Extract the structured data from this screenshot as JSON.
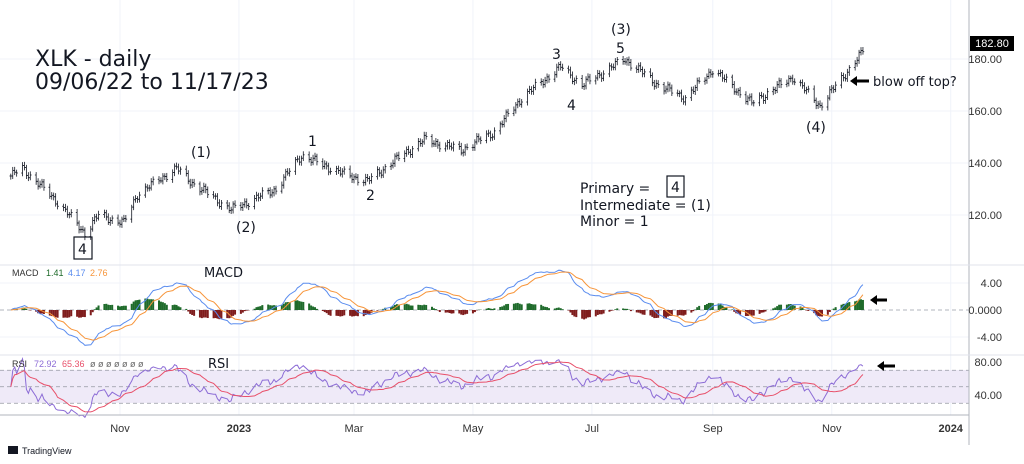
{
  "title": "XLK - daily",
  "subtitle": "09/06/22 to 11/17/23",
  "last_price": "182.80",
  "annotations": {
    "w3": "3",
    "w3i": "(3)",
    "w5": "5",
    "w4": "4",
    "m1": "1",
    "m2": "2",
    "i1": "(1)",
    "i2": "(2)",
    "p4": "4",
    "i4": "(4)",
    "blow": "blow off top?"
  },
  "legend_box": {
    "primary": "Primary =",
    "primary_val": "4",
    "intermediate": "Intermediate = (1)",
    "minor": "Minor = 1"
  },
  "macd": {
    "label": "MACD",
    "name": "MACD",
    "hist": "1.41",
    "macd": "4.17",
    "signal": "2.76",
    "ticks": [
      "4.00",
      "0.0000",
      "-4.00"
    ]
  },
  "rsi": {
    "label": "RSI",
    "name": "RSI",
    "value": "72.92",
    "ma": "65.36",
    "extra": "ø ø ø ø ø ø ø",
    "ticks": [
      "80.00",
      "40.00"
    ]
  },
  "price_ticks": [
    "180.00",
    "160.00",
    "140.00",
    "120.00"
  ],
  "time_ticks": [
    "Nov",
    "2023",
    "Mar",
    "May",
    "Jul",
    "Sep",
    "Nov",
    "2024"
  ],
  "brand": "TradingView",
  "colors": {
    "macd": "#5b8def",
    "signal": "#f7953a",
    "hist_up": "#1f6b2b",
    "hist_down": "#7f1d1d",
    "rsi": "#8c6cd6",
    "rsi_ma": "#e8506a",
    "band": "#efeaf8"
  },
  "chart_data": {
    "type": "ohlc",
    "symbol": "XLK",
    "interval": "daily",
    "ylim": [
      105,
      190
    ],
    "price_path": [
      [
        "2022-09-06",
        135
      ],
      [
        "2022-09-12",
        138
      ],
      [
        "2022-09-30",
        125
      ],
      [
        "2022-10-14",
        113
      ],
      [
        "2022-10-21",
        120
      ],
      [
        "2022-11-03",
        117
      ],
      [
        "2022-11-10",
        128
      ],
      [
        "2022-11-30",
        138
      ],
      [
        "2022-12-07",
        133
      ],
      [
        "2022-12-28",
        122
      ],
      [
        "2023-01-20",
        130
      ],
      [
        "2023-02-02",
        143
      ],
      [
        "2023-02-23",
        136
      ],
      [
        "2023-03-08",
        133
      ],
      [
        "2023-03-20",
        140
      ],
      [
        "2023-04-06",
        149
      ],
      [
        "2023-04-25",
        145
      ],
      [
        "2023-05-12",
        152
      ],
      [
        "2023-05-26",
        165
      ],
      [
        "2023-06-15",
        177
      ],
      [
        "2023-06-26",
        170
      ],
      [
        "2023-07-18",
        180
      ],
      [
        "2023-08-04",
        170
      ],
      [
        "2023-08-18",
        165
      ],
      [
        "2023-09-01",
        176
      ],
      [
        "2023-09-21",
        163
      ],
      [
        "2023-10-12",
        173
      ],
      [
        "2023-10-26",
        162
      ],
      [
        "2023-11-17",
        182.8
      ]
    ],
    "indicators": [
      "MACD",
      "RSI"
    ]
  }
}
